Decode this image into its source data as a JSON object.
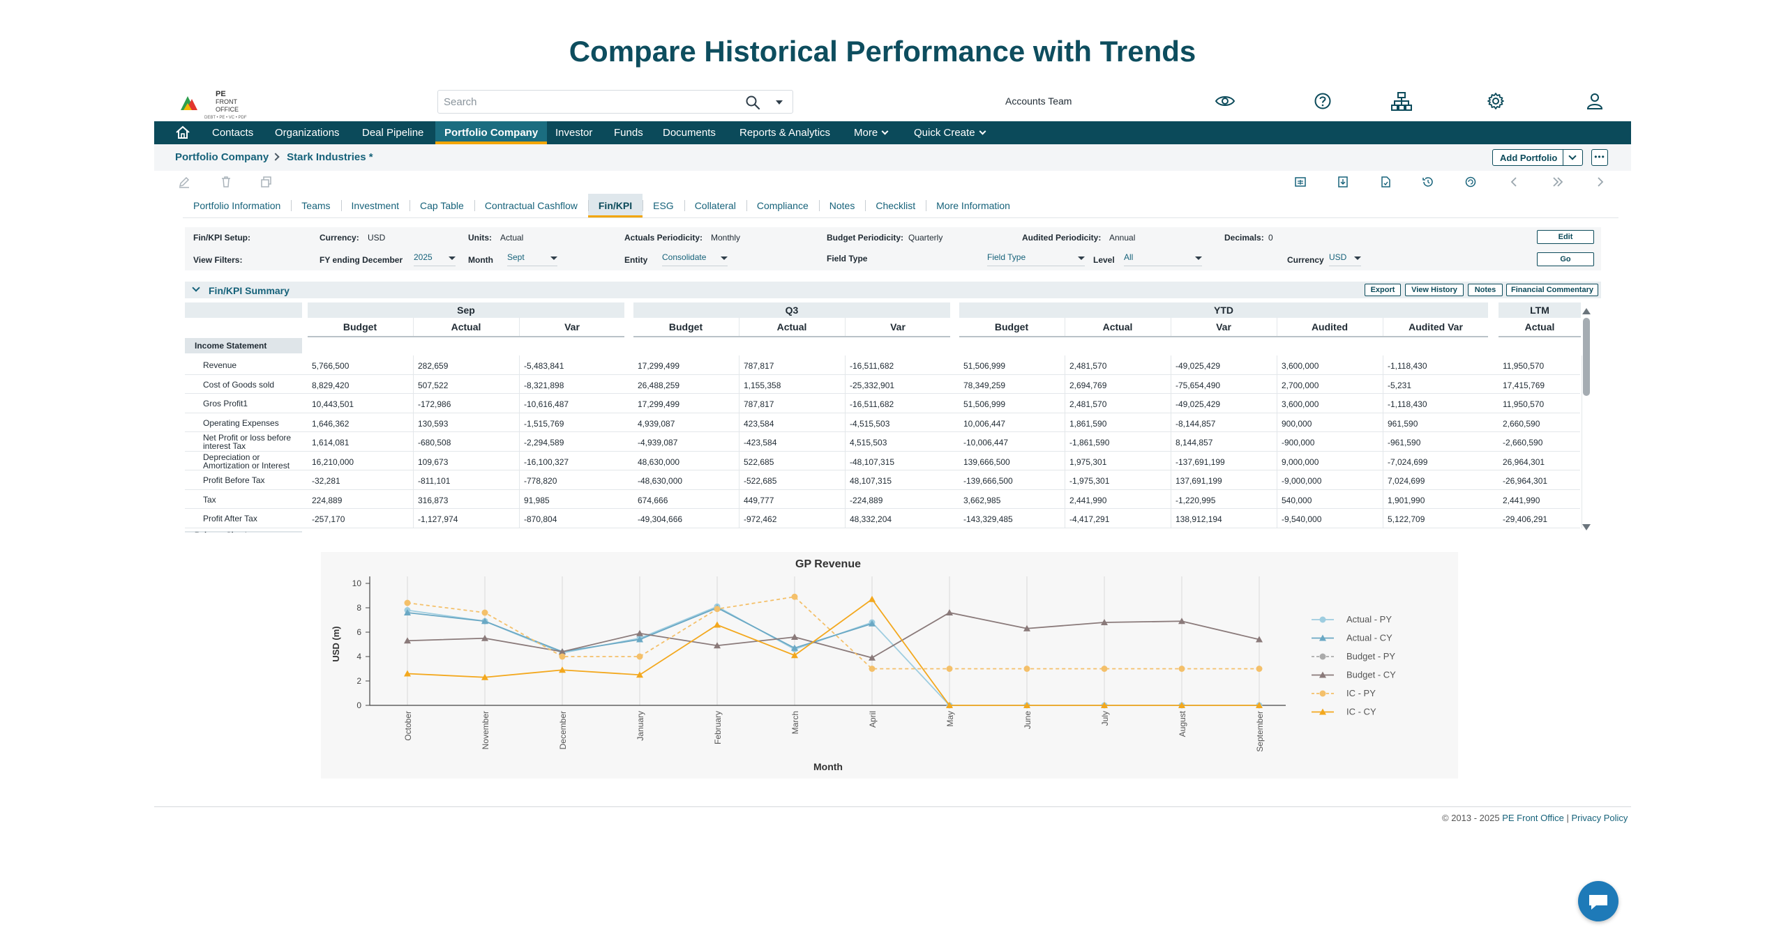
{
  "hero_title": "Compare Historical Performance with Trends",
  "header": {
    "logo_text": [
      "PE",
      "FRONT",
      "OFFICE"
    ],
    "logo_sub": "DEBT • PE • VC • PDF",
    "search_placeholder": "Search",
    "team": "Accounts Team"
  },
  "nav": {
    "items": [
      {
        "label": "Contacts"
      },
      {
        "label": "Organizations"
      },
      {
        "label": "Deal Pipeline"
      },
      {
        "label": "Portfolio Company",
        "active": true
      },
      {
        "label": "Investor"
      },
      {
        "label": "Funds"
      },
      {
        "label": "Documents"
      },
      {
        "label": "Reports & Analytics"
      },
      {
        "label": "More"
      },
      {
        "label": "Quick Create"
      }
    ]
  },
  "breadcrumb": {
    "root": "Portfolio Company",
    "current": "Stark Industries *"
  },
  "add_portfolio": "Add Portfolio",
  "tabs": [
    "Portfolio Information",
    "Teams",
    "Investment",
    "Cap Table",
    "Contractual Cashflow",
    "Fin/KPI",
    "ESG",
    "Collateral",
    "Compliance",
    "Notes",
    "Checklist",
    "More Information"
  ],
  "active_tab": "Fin/KPI",
  "setup": {
    "label": "Fin/KPI Setup:",
    "currency_label": "Currency:",
    "currency": "USD",
    "units_label": "Units:",
    "units": "Actual",
    "actuals_label": "Actuals Periodicity:",
    "actuals": "Monthly",
    "budget_label": "Budget Periodicity:",
    "budget": "Quarterly",
    "audited_label": "Audited Periodicity:",
    "audited": "Annual",
    "decimals_label": "Decimals:",
    "decimals": "0",
    "edit": "Edit"
  },
  "filters": {
    "label": "View Filters:",
    "fy_label": "FY ending December",
    "fy": "2025",
    "month_label": "Month",
    "month": "Sept",
    "entity_label": "Entity",
    "entity": "Consolidate",
    "fieldtype_label": "Field Type",
    "fieldtype": "Field Type",
    "level_label": "Level",
    "level": "All",
    "currency_label": "Currency",
    "currency": "USD",
    "go": "Go"
  },
  "summary": {
    "title": "Fin/KPI Summary",
    "buttons": [
      "Export",
      "View History",
      "Notes",
      "Financial Commentary"
    ],
    "groups": [
      {
        "name": "Sep",
        "cols": [
          "Budget",
          "Actual",
          "Var"
        ]
      },
      {
        "name": "Q3",
        "cols": [
          "Budget",
          "Actual",
          "Var"
        ]
      },
      {
        "name": "YTD",
        "cols": [
          "Budget",
          "Actual",
          "Var",
          "Audited",
          "Audited Var"
        ]
      },
      {
        "name": "LTM",
        "cols": [
          "Actual"
        ]
      }
    ],
    "section": "Income Statement",
    "next_section": "Balance Sheet",
    "rows": [
      {
        "label": [
          "Revenue"
        ],
        "values": [
          "5,766,500",
          "282,659",
          "-5,483,841",
          "17,299,499",
          "787,817",
          "-16,511,682",
          "51,506,999",
          "2,481,570",
          "-49,025,429",
          "3,600,000",
          "-1,118,430",
          "11,950,570"
        ]
      },
      {
        "label": [
          "Cost of Goods sold"
        ],
        "values": [
          "8,829,420",
          "507,522",
          "-8,321,898",
          "26,488,259",
          "1,155,358",
          "-25,332,901",
          "78,349,259",
          "2,694,769",
          "-75,654,490",
          "2,700,000",
          "-5,231",
          "17,415,769"
        ]
      },
      {
        "label": [
          "Gros Profit1"
        ],
        "values": [
          "10,443,501",
          "-172,986",
          "-10,616,487",
          "17,299,499",
          "787,817",
          "-16,511,682",
          "51,506,999",
          "2,481,570",
          "-49,025,429",
          "3,600,000",
          "-1,118,430",
          "11,950,570"
        ]
      },
      {
        "label": [
          "Operating Expenses"
        ],
        "values": [
          "1,646,362",
          "130,593",
          "-1,515,769",
          "4,939,087",
          "423,584",
          "-4,515,503",
          "10,006,447",
          "1,861,590",
          "-8,144,857",
          "900,000",
          "961,590",
          "2,660,590"
        ]
      },
      {
        "label": [
          "Net Profit or loss before",
          "interest Tax"
        ],
        "values": [
          "1,614,081",
          "-680,508",
          "-2,294,589",
          "-4,939,087",
          "-423,584",
          "4,515,503",
          "-10,006,447",
          "-1,861,590",
          "8,144,857",
          "-900,000",
          "-961,590",
          "-2,660,590"
        ]
      },
      {
        "label": [
          "Depreciation or",
          "Amortization or Interest"
        ],
        "values": [
          "16,210,000",
          "109,673",
          "-16,100,327",
          "48,630,000",
          "522,685",
          "-48,107,315",
          "139,666,500",
          "1,975,301",
          "-137,691,199",
          "9,000,000",
          "-7,024,699",
          "26,964,301"
        ]
      },
      {
        "label": [
          "Profit Before Tax"
        ],
        "values": [
          "-32,281",
          "-811,101",
          "-778,820",
          "-48,630,000",
          "-522,685",
          "48,107,315",
          "-139,666,500",
          "-1,975,301",
          "137,691,199",
          "-9,000,000",
          "7,024,699",
          "-26,964,301"
        ]
      },
      {
        "label": [
          "Tax"
        ],
        "values": [
          "224,889",
          "316,873",
          "91,985",
          "674,666",
          "449,777",
          "-224,889",
          "3,662,985",
          "2,441,990",
          "-1,220,995",
          "540,000",
          "1,901,990",
          "2,441,990"
        ]
      },
      {
        "label": [
          "Profit After Tax"
        ],
        "values": [
          "-257,170",
          "-1,127,974",
          "-870,804",
          "-49,304,666",
          "-972,462",
          "48,332,204",
          "-143,329,485",
          "-4,417,291",
          "138,912,194",
          "-9,540,000",
          "5,122,709",
          "-29,406,291"
        ]
      }
    ]
  },
  "chart_data": {
    "type": "line",
    "title": "GP Revenue",
    "xlabel": "Month",
    "ylabel": "USD (m)",
    "ylim": [
      0,
      10
    ],
    "yticks": [
      "0",
      "2",
      "4",
      "6",
      "8",
      "10"
    ],
    "categories": [
      "October",
      "November",
      "December",
      "January",
      "February",
      "March",
      "April",
      "May",
      "June",
      "July",
      "August",
      "September"
    ],
    "legend_position": "right",
    "series": [
      {
        "name": "Actual - PY",
        "color": "#9ecde0",
        "marker": "circle",
        "dashed": false,
        "values": [
          7.8,
          6.9,
          4.3,
          5.5,
          8.1,
          4.6,
          6.8,
          0,
          0,
          0,
          0,
          0
        ]
      },
      {
        "name": "Actual - CY",
        "color": "#6aa8c4",
        "marker": "triangle",
        "dashed": false,
        "values": [
          7.6,
          6.9,
          4.4,
          5.4,
          8.0,
          4.7,
          6.7,
          null,
          null,
          null,
          null,
          null
        ]
      },
      {
        "name": "Budget - PY",
        "color": "#aaaaaa",
        "marker": "circle",
        "dashed": true,
        "values": [
          null,
          null,
          null,
          null,
          null,
          null,
          null,
          null,
          null,
          null,
          null,
          null
        ]
      },
      {
        "name": "Budget - CY",
        "color": "#8a7a7a",
        "marker": "triangle",
        "dashed": false,
        "values": [
          5.3,
          5.5,
          4.4,
          5.9,
          4.9,
          5.6,
          3.9,
          7.6,
          6.3,
          6.8,
          6.9,
          5.4
        ]
      },
      {
        "name": "IC - PY",
        "color": "#f4c06a",
        "marker": "circle",
        "dashed": true,
        "values": [
          8.4,
          7.6,
          4.0,
          4.0,
          7.9,
          8.9,
          3.0,
          3.0,
          3.0,
          3.0,
          3.0,
          3.0
        ]
      },
      {
        "name": "IC - CY",
        "color": "#f3a81e",
        "marker": "triangle",
        "dashed": false,
        "values": [
          2.6,
          2.3,
          2.9,
          2.5,
          6.6,
          4.1,
          8.7,
          0,
          0,
          0,
          0,
          0
        ]
      }
    ]
  },
  "footer": {
    "copyright": "© 2013 - 2025",
    "brand": "PE Front Office",
    "sep": " | ",
    "privacy": "Privacy Policy"
  }
}
